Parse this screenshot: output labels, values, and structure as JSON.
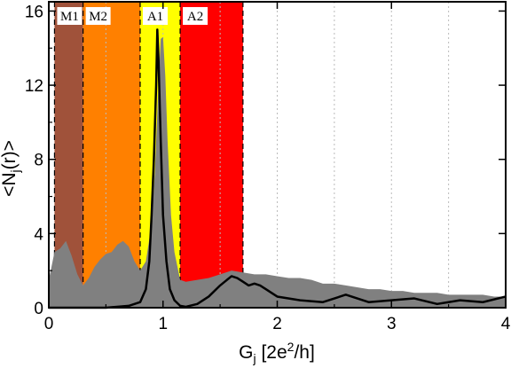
{
  "chart_data": {
    "type": "area",
    "xlabel": "G",
    "xlabel_sub": "j",
    "xlabel_unit": " [2e",
    "xlabel_sup": "2",
    "xlabel_unit_tail": "/h]",
    "ylabel": "<N",
    "ylabel_sub": "j",
    "ylabel_tail": "(r)>",
    "xlim": [
      0,
      4
    ],
    "ylim": [
      0,
      16.5
    ],
    "xticks": [
      0,
      1,
      2,
      3,
      4
    ],
    "xtick_labels": [
      "0",
      "1",
      "2",
      "3",
      "4"
    ],
    "yticks": [
      0,
      4,
      8,
      12,
      16
    ],
    "ytick_labels": [
      "0",
      "4",
      "8",
      "12",
      "16"
    ],
    "grid": "vertical dotted at 0.5 intervals",
    "regions": [
      {
        "label": "M1",
        "x0": 0.05,
        "x1": 0.3,
        "color": "#a0523a"
      },
      {
        "label": "M2",
        "x0": 0.3,
        "x1": 0.8,
        "color": "#ff8000"
      },
      {
        "label": "A1",
        "x0": 0.8,
        "x1": 1.15,
        "color": "#ffff00"
      },
      {
        "label": "A2",
        "x0": 1.15,
        "x1": 1.7,
        "color": "#ff0000"
      }
    ],
    "series": [
      {
        "style": "filled-gray",
        "color": "#808080",
        "x": [
          0,
          0.05,
          0.1,
          0.15,
          0.2,
          0.25,
          0.3,
          0.35,
          0.4,
          0.45,
          0.5,
          0.55,
          0.6,
          0.65,
          0.7,
          0.75,
          0.8,
          0.85,
          0.9,
          0.93,
          0.96,
          0.98,
          1.0,
          1.02,
          1.04,
          1.07,
          1.1,
          1.15,
          1.2,
          1.3,
          1.4,
          1.5,
          1.6,
          1.7,
          1.8,
          1.9,
          2.0,
          2.1,
          2.2,
          2.3,
          2.4,
          2.5,
          2.6,
          2.7,
          2.8,
          2.9,
          3.0,
          3.1,
          3.2,
          3.3,
          3.4,
          3.5,
          3.6,
          3.7,
          3.8,
          3.9,
          4.0
        ],
        "values": [
          1.5,
          3.0,
          3.2,
          3.6,
          2.8,
          1.8,
          1.2,
          1.6,
          2.2,
          2.6,
          2.9,
          3.0,
          3.4,
          3.6,
          3.3,
          2.5,
          2.0,
          2.5,
          4.5,
          7.5,
          12.0,
          14.5,
          14.6,
          12.5,
          9.0,
          5.0,
          3.0,
          1.5,
          1.4,
          1.5,
          1.6,
          1.8,
          2.0,
          1.9,
          1.8,
          1.8,
          1.7,
          1.6,
          1.6,
          1.5,
          1.3,
          1.3,
          1.2,
          1.1,
          1.0,
          1.0,
          0.9,
          0.9,
          0.8,
          0.8,
          0.8,
          0.7,
          0.7,
          0.7,
          0.7,
          0.6,
          0.6
        ]
      },
      {
        "style": "black-line",
        "color": "#000000",
        "x": [
          0,
          0.3,
          0.5,
          0.7,
          0.8,
          0.85,
          0.88,
          0.9,
          0.92,
          0.94,
          0.95,
          0.96,
          0.98,
          1.0,
          1.03,
          1.06,
          1.1,
          1.15,
          1.2,
          1.3,
          1.4,
          1.5,
          1.6,
          1.65,
          1.7,
          1.75,
          1.8,
          1.85,
          1.9,
          2.0,
          2.2,
          2.4,
          2.6,
          2.8,
          3.0,
          3.2,
          3.4,
          3.6,
          3.8,
          4.0
        ],
        "values": [
          0,
          0,
          0,
          0.1,
          0.3,
          1.0,
          2.5,
          5.0,
          8.0,
          12.0,
          15.0,
          13.5,
          9.0,
          5.0,
          2.5,
          1.0,
          0.4,
          0.1,
          0.05,
          0.2,
          0.6,
          1.2,
          1.7,
          1.6,
          1.4,
          1.2,
          1.3,
          1.2,
          1.0,
          0.6,
          0.4,
          0.3,
          0.7,
          0.3,
          0.4,
          0.5,
          0.2,
          0.4,
          0.3,
          0.6
        ]
      }
    ]
  }
}
